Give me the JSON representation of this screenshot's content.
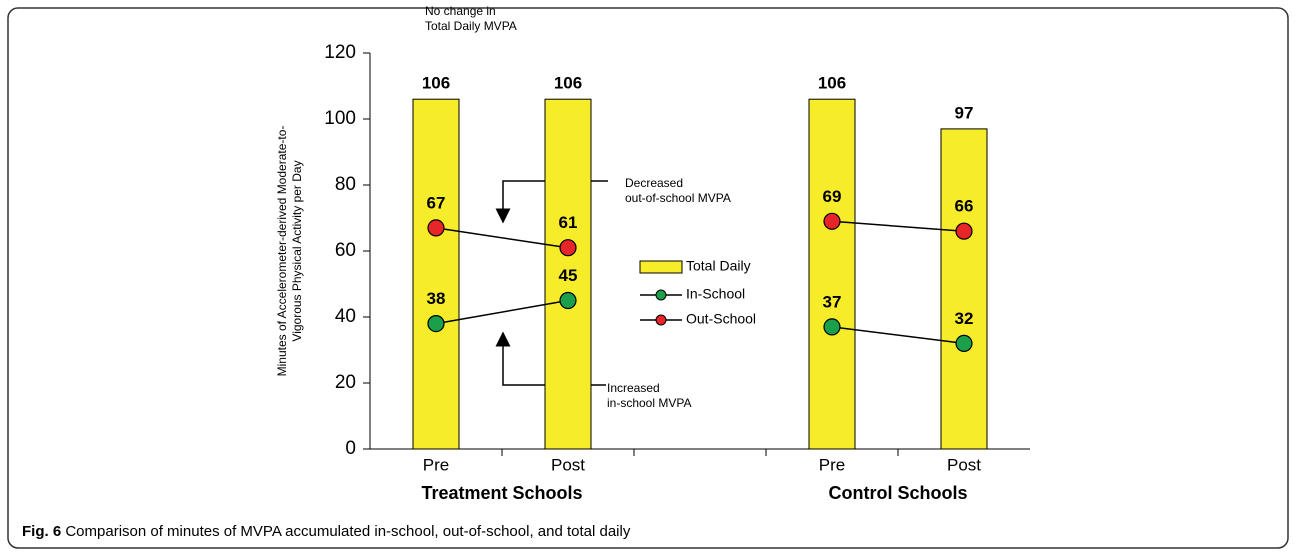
{
  "chart_data": {
    "type": "bar",
    "y_label": [
      "Minutes of Accelerometer-derived Moderate-to-",
      "Vigorous Physical Activity per Day"
    ],
    "categories": [
      "Pre",
      "Post",
      null,
      "Pre",
      "Post"
    ],
    "group_labels": [
      "Treatment Schools",
      "Control Schools"
    ],
    "series": [
      {
        "name": "Total Daily",
        "type": "bar",
        "color": "#f7ec2a",
        "values": [
          106,
          106,
          null,
          106,
          97
        ]
      },
      {
        "name": "In-School",
        "type": "line",
        "color": "#1aa04a",
        "values": [
          38,
          45,
          null,
          37,
          32
        ]
      },
      {
        "name": "Out-School",
        "type": "line",
        "color": "#e8262a",
        "values": [
          67,
          61,
          null,
          69,
          66
        ]
      }
    ],
    "ylim": [
      0,
      120
    ],
    "yticks": [
      0,
      20,
      40,
      60,
      80,
      100,
      120
    ],
    "annotations": [
      [
        "No change in",
        "Total Daily MVPA"
      ],
      [
        "Decreased",
        "out-of-school MVPA"
      ],
      [
        "Increased",
        "in-school MVPA"
      ]
    ],
    "caption": {
      "label": "Fig. 6",
      "text": "Comparison of minutes of MVPA accumulated in-school, out-of-school, and total daily"
    }
  }
}
